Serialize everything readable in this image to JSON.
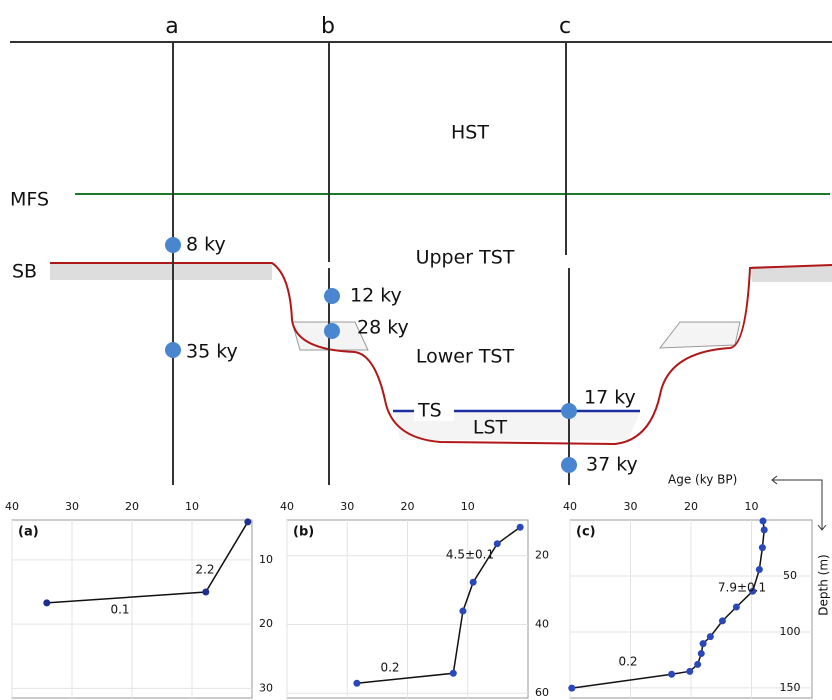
{
  "diagram": {
    "columns": [
      "a",
      "b",
      "c"
    ],
    "surfaces": {
      "mfs": "MFS",
      "sb": "SB",
      "ts": "TS"
    },
    "units": {
      "hst": "HST",
      "upper_tst": "Upper TST",
      "lower_tst": "Lower TST",
      "lst": "LST"
    },
    "samples": [
      "8 ky",
      "12 ky",
      "28 ky",
      "35 ky",
      "17 ky",
      "37 ky"
    ]
  },
  "axes": {
    "x_title": "Age (ky BP)",
    "y_title": "Depth (m)"
  },
  "panels": [
    {
      "label": "(a)",
      "xlim": [
        40,
        0
      ],
      "ylim": [
        3.8,
        31.5
      ],
      "xticks": [
        40,
        30,
        20,
        10
      ],
      "yticks": [
        10,
        20,
        30
      ],
      "x": [
        34.2,
        7.7,
        0.7
      ],
      "y": [
        16.7,
        15.0,
        4.1
      ],
      "color": "#1f2f8f",
      "rate_labels": [
        "0.1",
        "2.2"
      ]
    },
    {
      "label": "(b)",
      "xlim": [
        40,
        0
      ],
      "ylim": [
        9.6,
        61.4
      ],
      "xticks": [
        40,
        30,
        20,
        10
      ],
      "yticks": [
        20,
        40,
        60
      ],
      "x": [
        28.4,
        12.4,
        10.8,
        9.1,
        5.1,
        1.3
      ],
      "y": [
        57.1,
        54.2,
        36.1,
        27.7,
        16.5,
        11.7
      ],
      "color": "#2a48b8",
      "rate_labels": [
        "0.2",
        "4.5±0.1"
      ]
    },
    {
      "label": "(c)",
      "xlim": [
        40,
        0
      ],
      "ylim": [
        0,
        159
      ],
      "xticks": [
        40,
        30,
        20,
        10
      ],
      "yticks": [
        50,
        100,
        150
      ],
      "x": [
        39.7,
        23.2,
        20.2,
        18.9,
        18.3,
        18.0,
        16.8,
        14.8,
        12.5,
        9.8,
        8.7,
        8.2,
        7.9,
        8.1
      ],
      "y": [
        150.2,
        137.8,
        135.2,
        129.0,
        119.3,
        110.4,
        104.2,
        90.1,
        77.7,
        63.6,
        44.2,
        24.7,
        8.8,
        0.9
      ],
      "color": "#2a48b8",
      "rate_labels": [
        "0.2",
        "7.9±0.1"
      ]
    }
  ]
}
